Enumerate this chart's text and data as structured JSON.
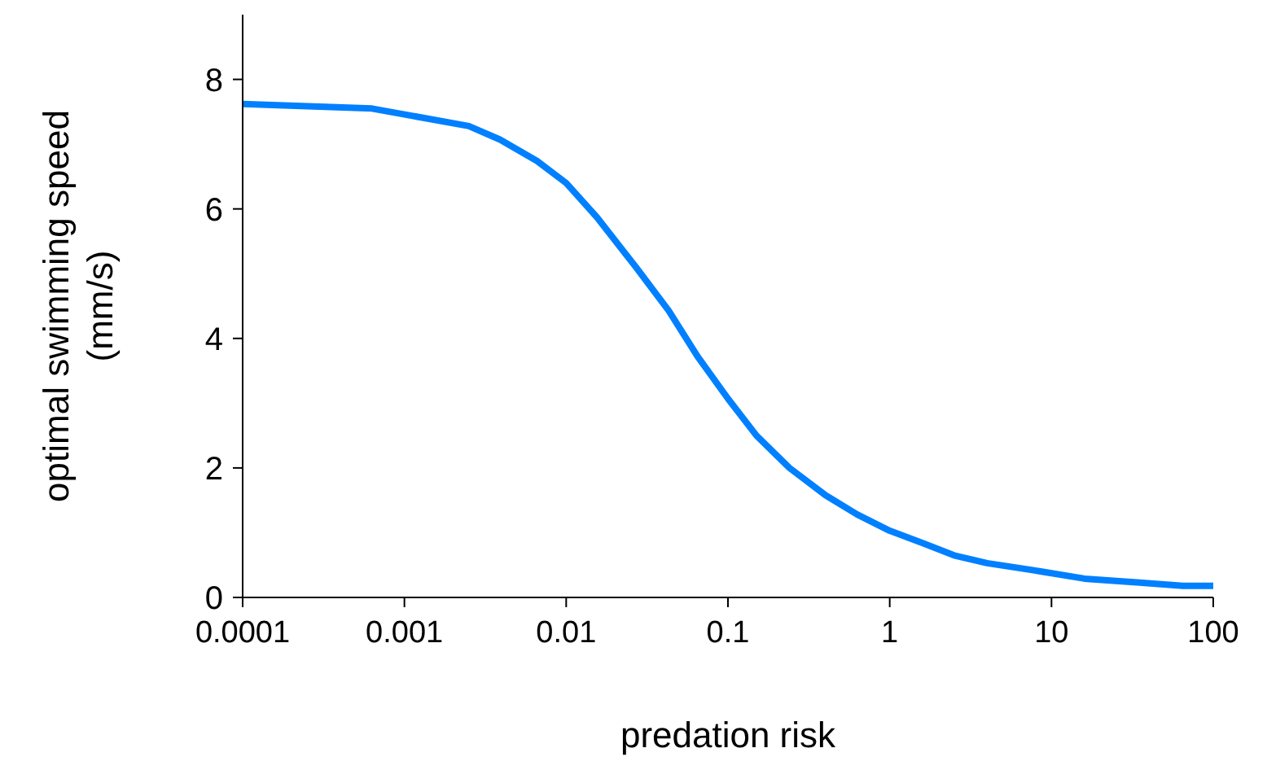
{
  "chart_data": {
    "type": "line",
    "xlabel": "predation risk",
    "ylabel": "optimal swimming speed\n(mm/s)",
    "log": "x",
    "x": [
      0.0001,
      0.00063,
      0.0025,
      0.0039,
      0.0066,
      0.01,
      0.0155,
      0.027,
      0.043,
      0.065,
      0.1,
      0.15,
      0.24,
      0.4,
      0.63,
      1,
      1.6,
      2.5,
      4,
      8.7,
      16,
      35,
      65,
      100
    ],
    "series": [
      {
        "color": "#0080ff",
        "values": [
          7.62,
          7.55,
          7.28,
          7.07,
          6.74,
          6.4,
          5.87,
          5.1,
          4.43,
          3.72,
          3.07,
          2.5,
          2.0,
          1.58,
          1.28,
          1.03,
          0.84,
          0.65,
          0.53,
          0.4,
          0.29,
          0.23,
          0.18,
          0.18
        ]
      }
    ],
    "xlim": [
      0.0001,
      100
    ],
    "xticks": [
      0.0001,
      0.001,
      0.01,
      0.1,
      1,
      10,
      100
    ],
    "ylim": [
      0,
      9
    ],
    "yticks": [
      0,
      2,
      4,
      6,
      8
    ],
    "grid": false,
    "legend": false,
    "marker": "none",
    "line_style": "solid"
  }
}
